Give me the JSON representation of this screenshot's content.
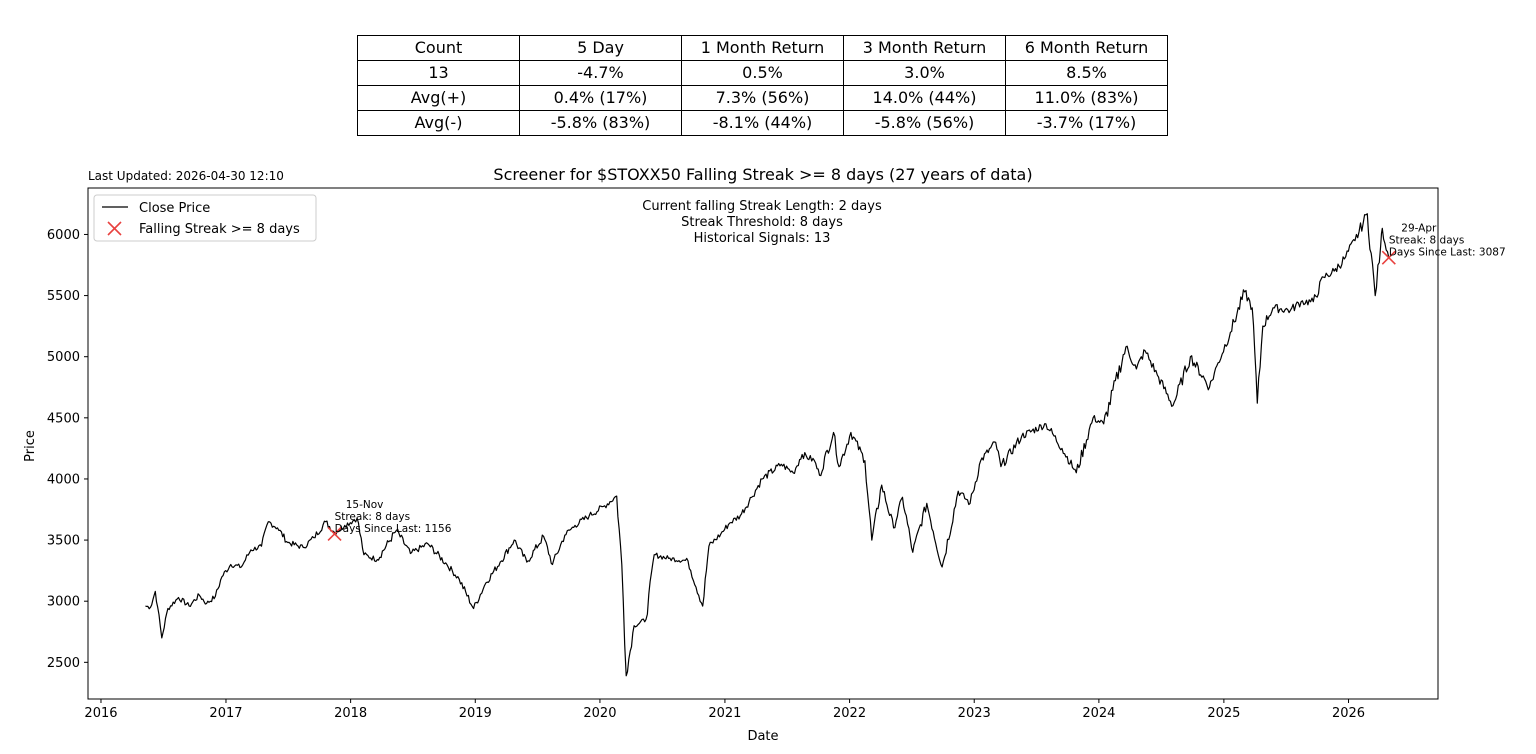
{
  "stats_table": {
    "header": [
      "Count",
      "5 Day",
      "1 Month Return",
      "3 Month Return",
      "6 Month Return"
    ],
    "rows": [
      [
        "13",
        "-4.7%",
        "0.5%",
        "3.0%",
        "8.5%"
      ],
      [
        "Avg(+)",
        "0.4% (17%)",
        "7.3% (56%)",
        "14.0% (44%)",
        "11.0% (83%)"
      ],
      [
        "Avg(-)",
        "-5.8% (83%)",
        "-8.1% (44%)",
        "-5.8% (56%)",
        "-3.7% (17%)"
      ]
    ]
  },
  "last_updated": "Last Updated: 2026-04-30 12:10",
  "colors": {
    "line": "#000000",
    "marker": "#e8413f"
  },
  "chart_data": {
    "type": "line",
    "title": "Screener for $STOXX50 Falling Streak >= 8 days (27 years of data)",
    "xlabel": "Date",
    "ylabel": "Price",
    "xlim": [
      "2015-11-24",
      "2026-09-20"
    ],
    "ylim": [
      2200,
      6380
    ],
    "x_ticks": [
      "2016",
      "2017",
      "2018",
      "2019",
      "2020",
      "2021",
      "2022",
      "2023",
      "2024",
      "2025",
      "2026"
    ],
    "y_ticks": [
      2500,
      3000,
      3500,
      4000,
      4500,
      5000,
      5500,
      6000
    ],
    "grid": false,
    "legend": {
      "position": "top-left",
      "entries": [
        "Close Price",
        "Falling Streak >= 8 days"
      ]
    },
    "info_text": [
      "Current falling Streak Length: 2 days",
      "Streak Threshold: 8 days",
      "Historical Signals: 13"
    ],
    "series": [
      {
        "name": "Close Price",
        "points": [
          [
            "2016-05-10",
            2960
          ],
          [
            "2016-05-25",
            2950
          ],
          [
            "2016-06-08",
            3080
          ],
          [
            "2016-06-15",
            2950
          ],
          [
            "2016-06-27",
            2700
          ],
          [
            "2016-07-15",
            2940
          ],
          [
            "2016-08-15",
            3030
          ],
          [
            "2016-09-15",
            2960
          ],
          [
            "2016-10-15",
            3050
          ],
          [
            "2016-11-05",
            2980
          ],
          [
            "2016-12-01",
            3040
          ],
          [
            "2016-12-20",
            3200
          ],
          [
            "2017-01-15",
            3300
          ],
          [
            "2017-02-15",
            3280
          ],
          [
            "2017-03-15",
            3420
          ],
          [
            "2017-04-15",
            3450
          ],
          [
            "2017-05-05",
            3650
          ],
          [
            "2017-06-01",
            3600
          ],
          [
            "2017-07-01",
            3480
          ],
          [
            "2017-08-15",
            3440
          ],
          [
            "2017-09-15",
            3520
          ],
          [
            "2017-10-20",
            3650
          ],
          [
            "2017-11-15",
            3560
          ],
          [
            "2017-12-15",
            3620
          ],
          [
            "2018-01-20",
            3680
          ],
          [
            "2018-02-09",
            3380
          ],
          [
            "2018-03-20",
            3340
          ],
          [
            "2018-05-15",
            3580
          ],
          [
            "2018-06-25",
            3390
          ],
          [
            "2018-08-15",
            3470
          ],
          [
            "2018-10-10",
            3300
          ],
          [
            "2018-11-15",
            3180
          ],
          [
            "2018-12-27",
            2940
          ],
          [
            "2019-02-01",
            3150
          ],
          [
            "2019-03-15",
            3320
          ],
          [
            "2019-04-25",
            3500
          ],
          [
            "2019-06-01",
            3320
          ],
          [
            "2019-07-20",
            3530
          ],
          [
            "2019-08-15",
            3300
          ],
          [
            "2019-09-20",
            3540
          ],
          [
            "2019-10-20",
            3620
          ],
          [
            "2019-12-01",
            3700
          ],
          [
            "2020-01-15",
            3780
          ],
          [
            "2020-02-19",
            3860
          ],
          [
            "2020-03-05",
            3300
          ],
          [
            "2020-03-18",
            2390
          ],
          [
            "2020-04-10",
            2800
          ],
          [
            "2020-05-15",
            2850
          ],
          [
            "2020-06-08",
            3380
          ],
          [
            "2020-07-20",
            3350
          ],
          [
            "2020-09-15",
            3330
          ],
          [
            "2020-10-28",
            2960
          ],
          [
            "2020-11-15",
            3450
          ],
          [
            "2020-12-20",
            3550
          ],
          [
            "2021-01-15",
            3640
          ],
          [
            "2021-02-15",
            3700
          ],
          [
            "2021-03-20",
            3850
          ],
          [
            "2021-04-20",
            4000
          ],
          [
            "2021-06-15",
            4120
          ],
          [
            "2021-07-20",
            4050
          ],
          [
            "2021-08-15",
            4200
          ],
          [
            "2021-09-20",
            4150
          ],
          [
            "2021-10-05",
            4030
          ],
          [
            "2021-11-15",
            4380
          ],
          [
            "2021-12-01",
            4100
          ],
          [
            "2022-01-05",
            4380
          ],
          [
            "2022-02-15",
            4150
          ],
          [
            "2022-03-07",
            3500
          ],
          [
            "2022-04-05",
            3950
          ],
          [
            "2022-05-10",
            3600
          ],
          [
            "2022-06-05",
            3850
          ],
          [
            "2022-07-05",
            3400
          ],
          [
            "2022-08-15",
            3800
          ],
          [
            "2022-09-29",
            3280
          ],
          [
            "2022-11-15",
            3900
          ],
          [
            "2022-12-20",
            3800
          ],
          [
            "2023-01-20",
            4150
          ],
          [
            "2023-03-05",
            4300
          ],
          [
            "2023-03-20",
            4100
          ],
          [
            "2023-05-20",
            4350
          ],
          [
            "2023-07-30",
            4450
          ],
          [
            "2023-09-15",
            4250
          ],
          [
            "2023-10-27",
            4050
          ],
          [
            "2023-12-15",
            4500
          ],
          [
            "2024-01-15",
            4450
          ],
          [
            "2024-03-20",
            5080
          ],
          [
            "2024-04-20",
            4900
          ],
          [
            "2024-05-15",
            5050
          ],
          [
            "2024-06-20",
            4850
          ],
          [
            "2024-08-05",
            4600
          ],
          [
            "2024-09-25",
            5000
          ],
          [
            "2024-11-20",
            4750
          ],
          [
            "2024-12-15",
            4950
          ],
          [
            "2025-01-20",
            5200
          ],
          [
            "2025-03-03",
            5530
          ],
          [
            "2025-03-25",
            5400
          ],
          [
            "2025-04-09",
            4620
          ],
          [
            "2025-04-25",
            5250
          ],
          [
            "2025-05-25",
            5400
          ],
          [
            "2025-07-15",
            5380
          ],
          [
            "2025-08-15",
            5450
          ],
          [
            "2025-09-20",
            5450
          ],
          [
            "2025-10-20",
            5650
          ],
          [
            "2025-11-20",
            5700
          ],
          [
            "2025-12-20",
            5800
          ],
          [
            "2026-01-20",
            5950
          ],
          [
            "2026-02-25",
            6170
          ],
          [
            "2026-03-20",
            5500
          ],
          [
            "2026-04-05",
            5900
          ],
          [
            "2026-04-10",
            6050
          ],
          [
            "2026-04-29",
            5810
          ]
        ]
      },
      {
        "name": "Falling Streak >= 8 days",
        "points": [
          [
            "2017-11-15",
            3550
          ],
          [
            "2026-04-29",
            5810
          ]
        ]
      }
    ],
    "annotations": [
      {
        "date": "15-Nov",
        "streak": "Streak: 8 days",
        "days_since": "Days Since Last: 1156"
      },
      {
        "date": "29-Apr",
        "streak": "Streak: 8 days",
        "days_since": "Days Since Last: 3087"
      }
    ]
  }
}
